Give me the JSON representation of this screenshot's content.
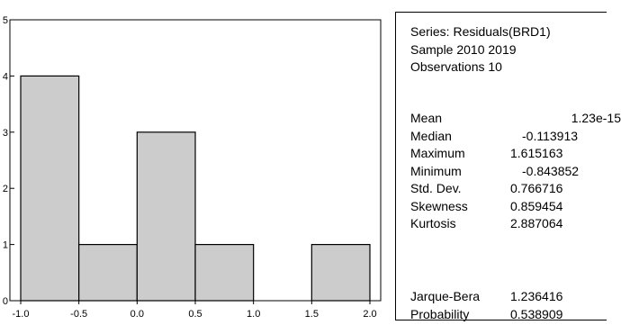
{
  "chart_data": {
    "type": "bar",
    "subtype": "histogram",
    "bins": [
      {
        "start": -1.0,
        "end": -0.5,
        "count": 4
      },
      {
        "start": -0.5,
        "end": 0.0,
        "count": 1
      },
      {
        "start": 0.0,
        "end": 0.5,
        "count": 3
      },
      {
        "start": 0.5,
        "end": 1.0,
        "count": 1
      },
      {
        "start": 1.0,
        "end": 1.5,
        "count": 0
      },
      {
        "start": 1.5,
        "end": 2.0,
        "count": 1
      }
    ],
    "xlim": [
      -1.0,
      2.0
    ],
    "ylim": [
      0,
      5
    ],
    "x_ticks": [
      "-1.0",
      "-0.5",
      "0.0",
      "0.5",
      "1.0",
      "1.5",
      "2.0"
    ],
    "y_ticks": [
      "0",
      "1",
      "2",
      "3",
      "4",
      "5"
    ],
    "grid": false,
    "bar_color": "#cccccc",
    "title": "",
    "xlabel": "",
    "ylabel": ""
  },
  "stats": {
    "series": "Series: Residuals(BRD1)",
    "sample": "Sample 2010 2019",
    "observations": "Observations 10",
    "rows": [
      {
        "label": "Mean",
        "value": "1.23e-15"
      },
      {
        "label": "Median",
        "value": "-0.113913"
      },
      {
        "label": "Maximum",
        "value": "1.615163"
      },
      {
        "label": "Minimum",
        "value": "-0.843852"
      },
      {
        "label": "Std. Dev.",
        "value": "0.766716"
      },
      {
        "label": "Skewness",
        "value": "0.859454"
      },
      {
        "label": "Kurtosis",
        "value": "2.887064"
      }
    ],
    "jb_rows": [
      {
        "label": "Jarque-Bera",
        "value": "1.236416"
      },
      {
        "label": "Probability",
        "value": "0.538909"
      }
    ]
  }
}
